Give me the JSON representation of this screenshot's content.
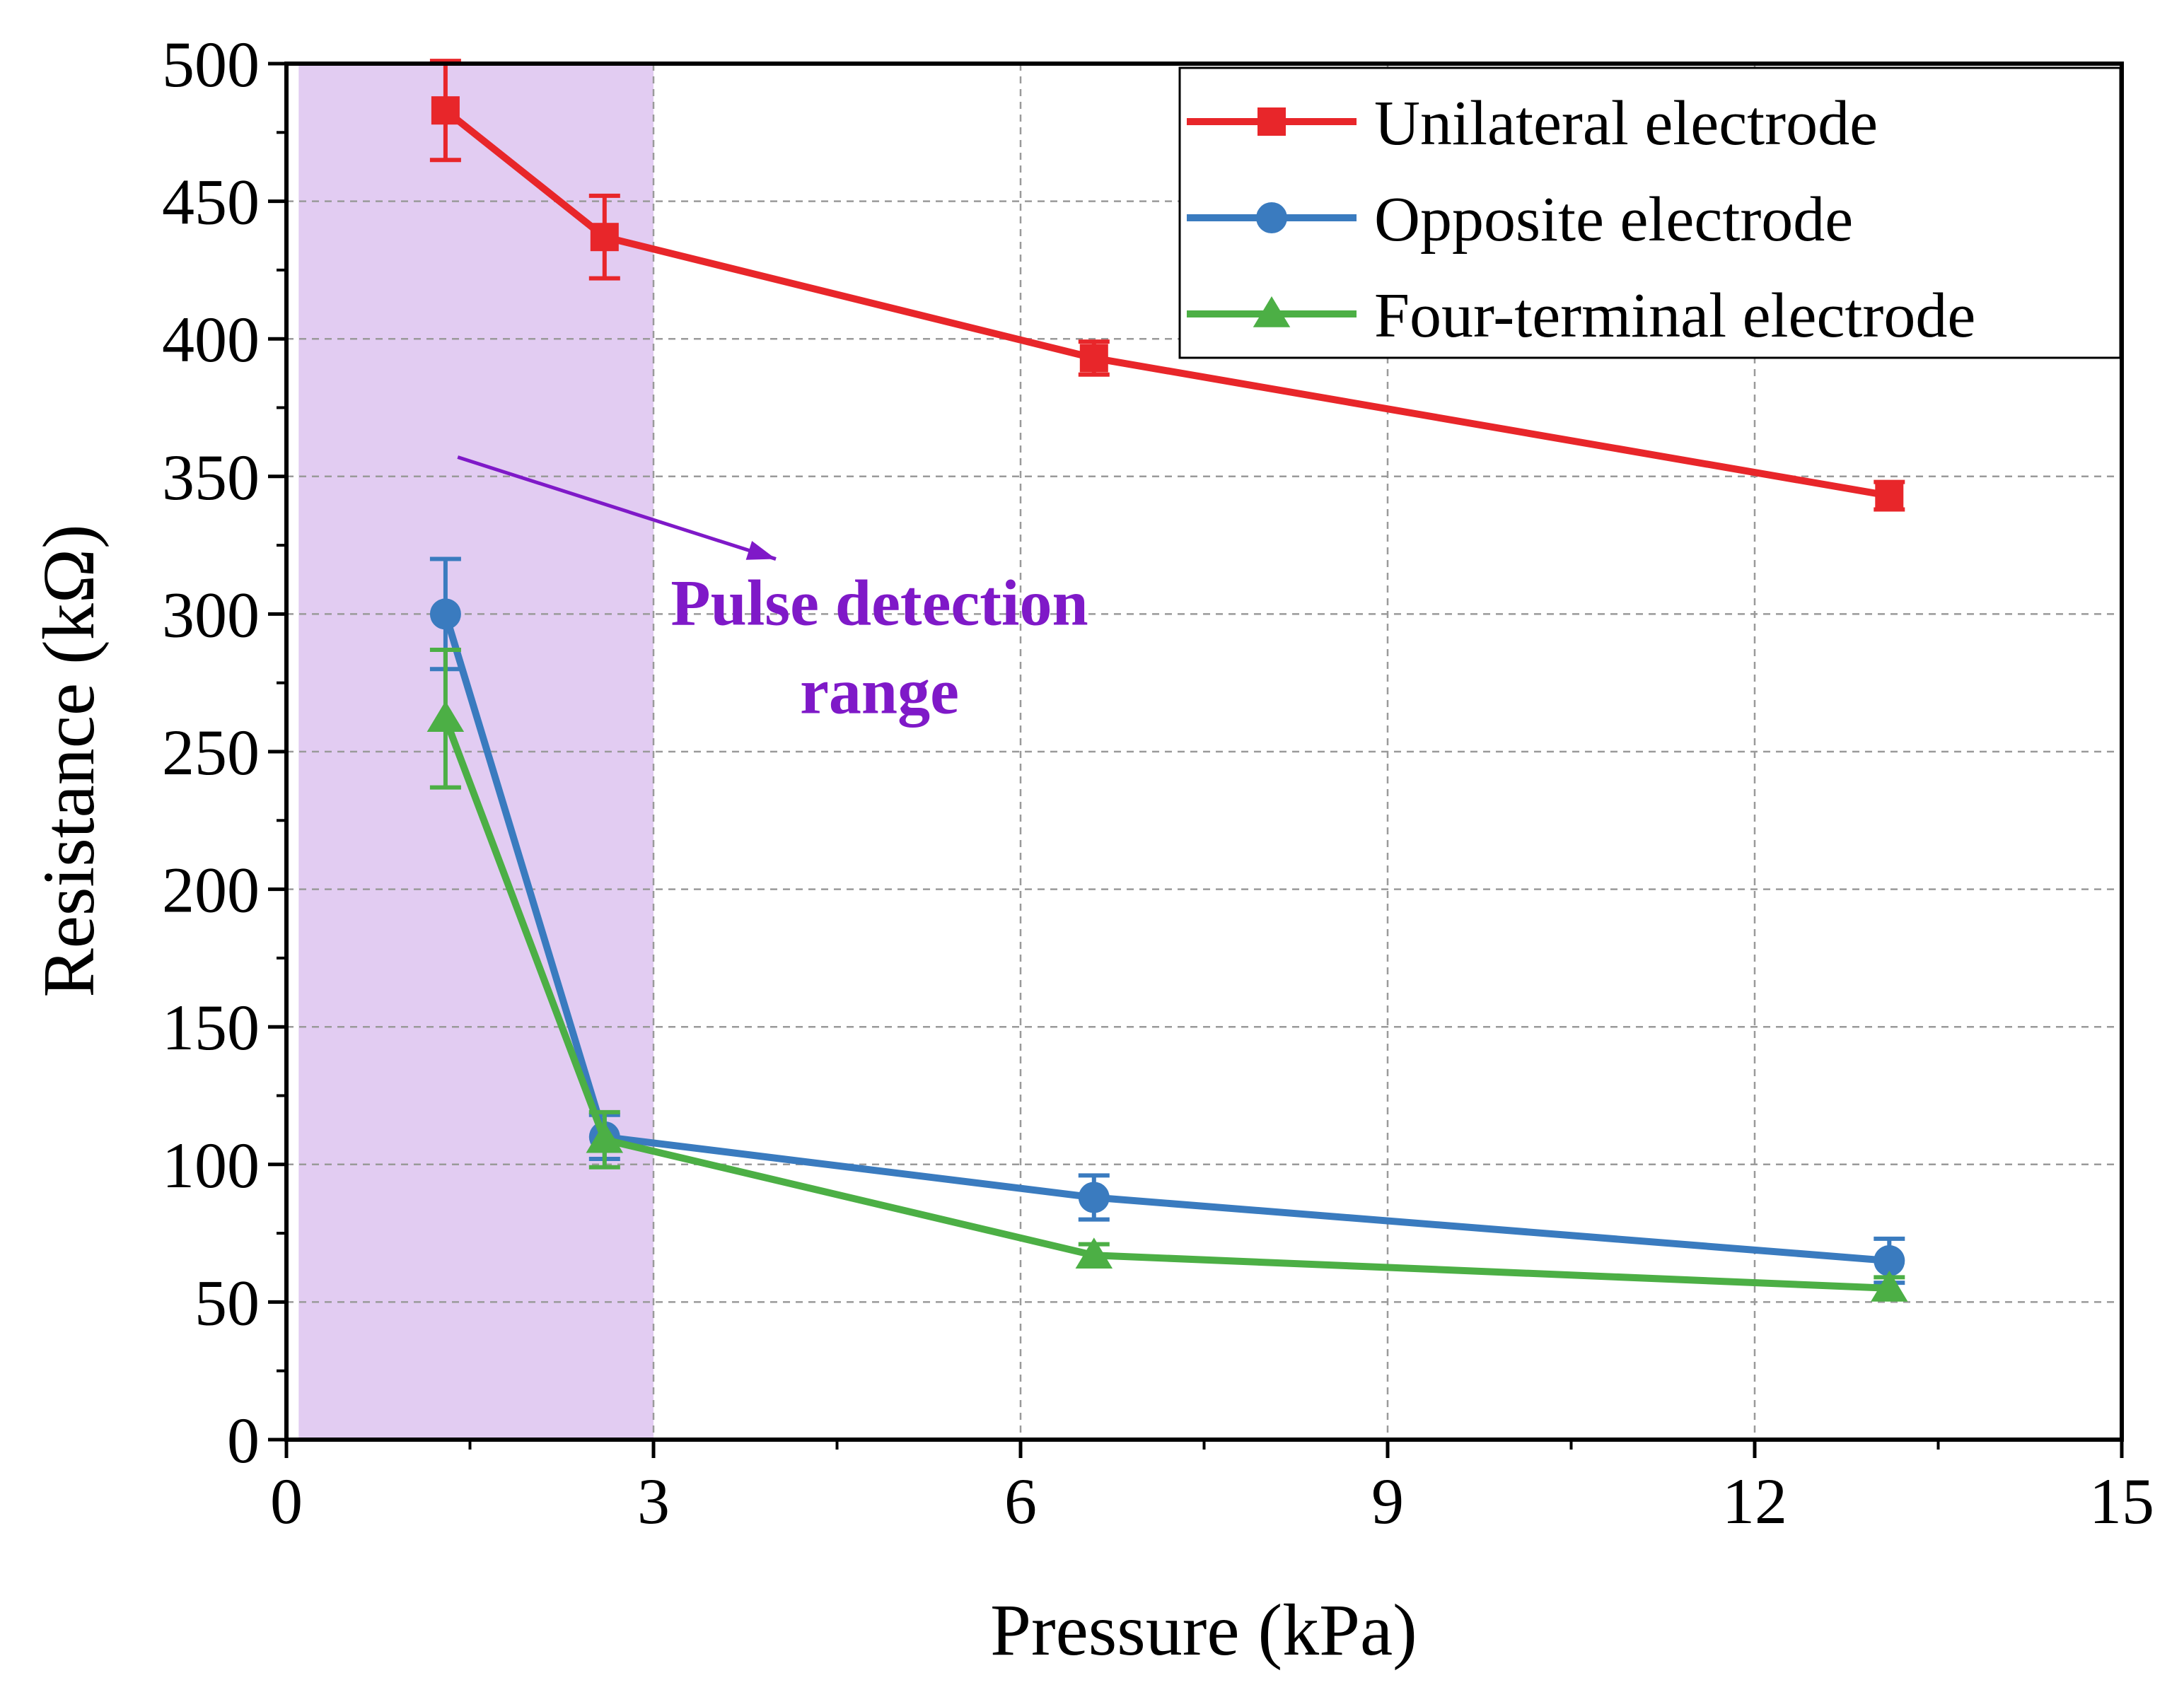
{
  "chart_data": {
    "type": "line",
    "xlabel": "Pressure (kPa)",
    "ylabel": "Resistance (kΩ)",
    "xlim": [
      0,
      15
    ],
    "ylim": [
      0,
      500
    ],
    "xticks": [
      0,
      3,
      6,
      9,
      12,
      15
    ],
    "yticks": [
      0,
      50,
      100,
      150,
      200,
      250,
      300,
      350,
      400,
      450,
      500
    ],
    "grid": true,
    "legend_position": "top-right",
    "highlight_region": {
      "x_from": 0.1,
      "x_to": 3,
      "color": "#e2ccf2"
    },
    "annotation": {
      "lines": [
        "Pulse detection",
        "range"
      ],
      "color": "#7f19c8",
      "x": 4.5,
      "y": 300
    },
    "annotation_arrow": {
      "from": [
        1.4,
        357
      ],
      "to": [
        4.0,
        320
      ]
    },
    "series": [
      {
        "name": "Unilateral electrode",
        "color": "#e8262a",
        "marker": "square",
        "x": [
          1.3,
          2.6,
          6.6,
          13.1
        ],
        "y": [
          483,
          437,
          393,
          343
        ],
        "err": [
          18,
          15,
          6,
          5
        ]
      },
      {
        "name": "Opposite electrode",
        "color": "#3a7bbf",
        "marker": "circle",
        "x": [
          1.3,
          2.6,
          6.6,
          13.1
        ],
        "y": [
          300,
          110,
          88,
          65
        ],
        "err": [
          20,
          8,
          8,
          8
        ]
      },
      {
        "name": "Four-terminal electrode",
        "color": "#4caf45",
        "marker": "triangle",
        "x": [
          1.3,
          2.6,
          6.6,
          13.1
        ],
        "y": [
          262,
          109,
          67,
          55
        ],
        "err": [
          25,
          10,
          4,
          4
        ]
      }
    ]
  }
}
